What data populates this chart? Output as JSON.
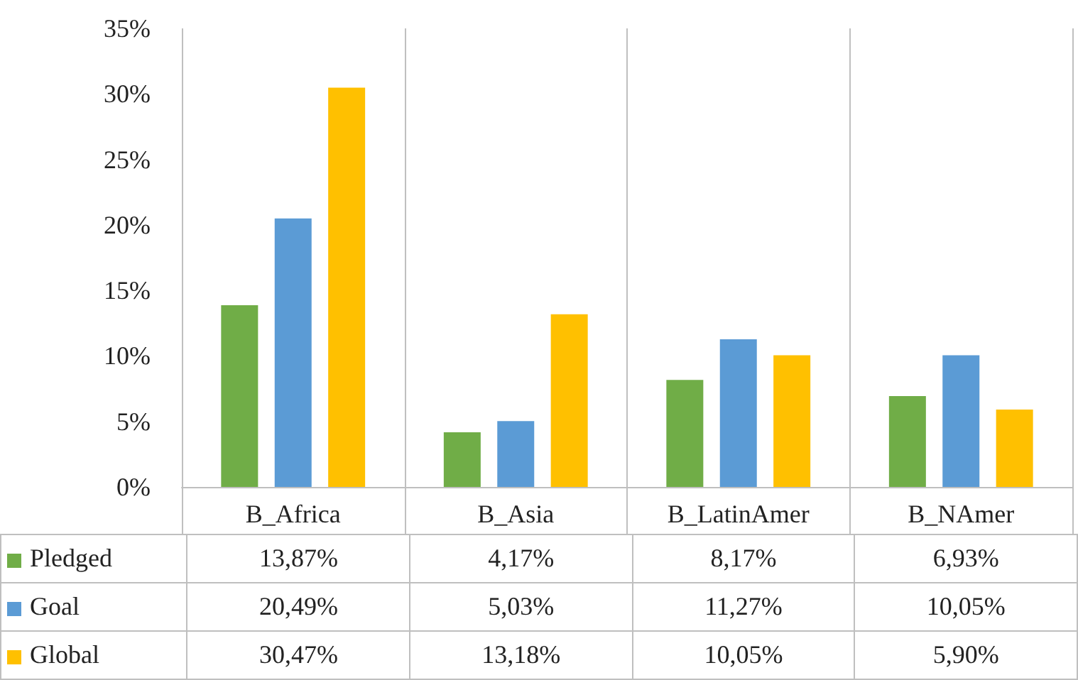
{
  "chart_data": {
    "type": "bar",
    "categories": [
      "B_Africa",
      "B_Asia",
      "B_LatinAmer",
      "B_NAmer"
    ],
    "series": [
      {
        "name": "Pledged",
        "color": "#70ad47",
        "values": [
          13.87,
          4.17,
          8.17,
          6.93
        ],
        "value_labels": [
          "13,87%",
          "4,17%",
          "8,17%",
          "6,93%"
        ]
      },
      {
        "name": "Goal",
        "color": "#5b9bd5",
        "values": [
          20.49,
          5.03,
          11.27,
          10.05
        ],
        "value_labels": [
          "20,49%",
          "5,03%",
          "11,27%",
          "10,05%"
        ]
      },
      {
        "name": "Global",
        "color": "#ffc000",
        "values": [
          30.47,
          13.18,
          10.05,
          5.9
        ],
        "value_labels": [
          "30,47%",
          "13,18%",
          "10,05%",
          "5,90%"
        ]
      }
    ],
    "ylim": [
      0,
      35
    ],
    "yticks": [
      {
        "value": 0,
        "label": "0%"
      },
      {
        "value": 5,
        "label": "5%"
      },
      {
        "value": 10,
        "label": "10%"
      },
      {
        "value": 15,
        "label": "15%"
      },
      {
        "value": 20,
        "label": "20%"
      },
      {
        "value": 25,
        "label": "25%"
      },
      {
        "value": 30,
        "label": "30%"
      },
      {
        "value": 35,
        "label": "35%"
      }
    ],
    "grid": "x",
    "legend": "bottom left"
  }
}
